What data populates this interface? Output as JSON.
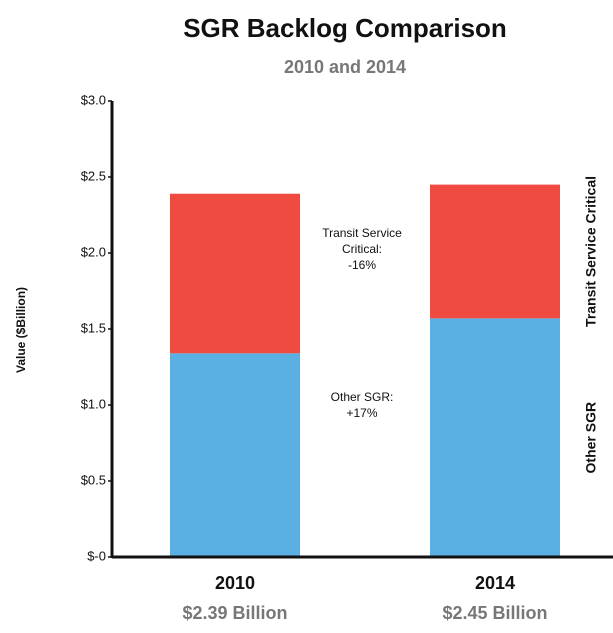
{
  "chart_data": {
    "type": "stacked_bar",
    "title": "SGR Backlog Comparison",
    "subtitle": "2010 and 2014",
    "y_label": "Value ($Billion)",
    "categories": [
      "2010",
      "2014"
    ],
    "category_sublabels": [
      "$2.39 Billion",
      "$2.45 Billion"
    ],
    "series": [
      {
        "name": "Other SGR",
        "color": "#5aafe3",
        "values": [
          1.34,
          1.57
        ]
      },
      {
        "name": "Transit Service Critical",
        "color": "#f04b41",
        "values": [
          1.05,
          0.88
        ]
      }
    ],
    "ylim": [
      0,
      3
    ],
    "yticks": [
      {
        "value": 0,
        "label": "$-0"
      },
      {
        "value": 0.5,
        "label": "$0.5"
      },
      {
        "value": 1,
        "label": "$1.0"
      },
      {
        "value": 1.5,
        "label": "$1.5"
      },
      {
        "value": 2,
        "label": "$2.0"
      },
      {
        "value": 2.5,
        "label": "$2.5"
      },
      {
        "value": 3,
        "label": "$3.0"
      }
    ],
    "annotations": [
      {
        "lines": [
          "Transit Service",
          "Critical:",
          "-16%"
        ]
      },
      {
        "lines": [
          "Other SGR:",
          "+17%"
        ]
      }
    ]
  }
}
